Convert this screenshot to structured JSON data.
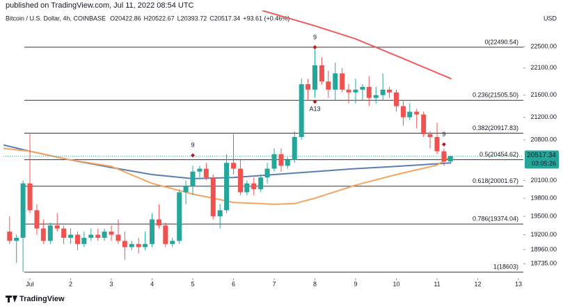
{
  "header": {
    "published": "published on TradingView.com, Jul 11, 2022 08:54 UTC",
    "symbol": "Bitcoin / U.S. Dollar, 4h, COINBASE",
    "ohlc": [
      "O20422.86",
      "H20522.67",
      "L20393.72",
      "C20517.34"
    ],
    "change": "+93.61 (+0.46%)"
  },
  "footer": {
    "logo": "TradingView"
  },
  "chart_data": {
    "type": "candlestick",
    "currency": "USD",
    "log_scale": true,
    "up_color": "#26a69a",
    "down_color": "#ef5350",
    "xlim": [
      0.35,
      13.12
    ],
    "xticks": [
      {
        "value": 1,
        "label": "Jul"
      },
      2,
      3,
      4,
      5,
      6,
      7,
      8,
      9,
      10,
      11,
      12,
      13
    ],
    "ylim": [
      18400,
      23200
    ],
    "yticks": [
      {
        "value": 22500,
        "label": "22500.00"
      },
      {
        "value": 22100,
        "label": "22100.00"
      },
      {
        "value": 21600,
        "label": "21600.00"
      },
      {
        "value": 21200,
        "label": "21200.00"
      },
      {
        "value": 20800,
        "label": "20800.00"
      },
      {
        "value": 20100,
        "label": "20100.00"
      },
      {
        "value": 19800,
        "label": "19800.00"
      },
      {
        "value": 19500,
        "label": "19500.00"
      },
      {
        "value": 19200,
        "label": "19200.00"
      },
      {
        "value": 18960,
        "label": "18960.00"
      },
      {
        "value": 18735,
        "label": "18735.00"
      }
    ],
    "x": [
      0.5,
      0.67,
      0.83,
      1,
      1.17,
      1.33,
      1.5,
      1.67,
      1.83,
      2,
      2.17,
      2.33,
      2.5,
      2.67,
      2.83,
      3,
      3.17,
      3.33,
      3.5,
      3.67,
      3.83,
      4,
      4.17,
      4.33,
      4.5,
      4.67,
      4.83,
      5,
      5.17,
      5.33,
      5.5,
      5.67,
      5.83,
      6,
      6.17,
      6.33,
      6.5,
      6.67,
      6.83,
      7,
      7.17,
      7.33,
      7.5,
      7.67,
      7.83,
      8,
      8.17,
      8.33,
      8.5,
      8.67,
      8.83,
      9,
      9.17,
      9.33,
      9.5,
      9.67,
      9.83,
      10,
      10.17,
      10.33,
      10.5,
      10.67,
      10.83,
      11,
      11.17,
      11.33
    ],
    "open": [
      19250,
      19100,
      19150,
      20050,
      19600,
      19300,
      19100,
      19350,
      19300,
      19150,
      19200,
      19050,
      19150,
      19200,
      19150,
      19250,
      19200,
      19100,
      19000,
      19050,
      19000,
      19050,
      19450,
      19350,
      19050,
      19100,
      19900,
      20000,
      20250,
      20300,
      20150,
      19500,
      19600,
      20400,
      20300,
      19900,
      20050,
      19950,
      20150,
      20300,
      20550,
      20350,
      20450,
      20850,
      21800,
      21700,
      22150,
      21850,
      21700,
      22000,
      21700,
      21650,
      21700,
      21750,
      21550,
      21600,
      21700,
      21650,
      21400,
      21200,
      21300,
      21250,
      20900,
      20850,
      20600,
      20422.86
    ],
    "high": [
      19500,
      19200,
      20100,
      20900,
      19700,
      19450,
      19400,
      19550,
      19350,
      19300,
      19250,
      19250,
      19300,
      19300,
      19300,
      19350,
      19450,
      19250,
      19100,
      19150,
      19250,
      19550,
      19700,
      19400,
      19150,
      19950,
      20100,
      20350,
      20350,
      20400,
      20200,
      19700,
      20550,
      20900,
      20450,
      20100,
      20150,
      20200,
      20400,
      20650,
      20650,
      20500,
      20950,
      21900,
      21900,
      22490.54,
      22300,
      22050,
      22200,
      22100,
      21800,
      21900,
      21800,
      21950,
      21750,
      22000,
      21750,
      21700,
      21500,
      21450,
      21350,
      21300,
      20950,
      21100,
      20650,
      20522.67
    ],
    "low": [
      19050,
      18750,
      18603,
      19550,
      19200,
      19050,
      19050,
      19250,
      19050,
      19050,
      18950,
      19000,
      19100,
      19100,
      19100,
      19100,
      19050,
      18800,
      18950,
      18900,
      18950,
      19000,
      19300,
      19000,
      19000,
      19050,
      19700,
      19850,
      20150,
      20100,
      19450,
      19300,
      19550,
      20200,
      19850,
      19850,
      19850,
      19900,
      20050,
      20250,
      20250,
      20300,
      20400,
      20800,
      21500,
      21550,
      21800,
      21550,
      21500,
      21650,
      21450,
      21450,
      21500,
      21400,
      21450,
      21500,
      21550,
      21300,
      21050,
      21150,
      21000,
      20850,
      20650,
      20550,
      20350,
      20393.72
    ],
    "close": [
      19100,
      19150,
      20050,
      19600,
      19300,
      19100,
      19350,
      19300,
      19150,
      19200,
      19050,
      19150,
      19200,
      19150,
      19250,
      19200,
      19100,
      19000,
      19050,
      19000,
      19050,
      19450,
      19350,
      19050,
      19100,
      19900,
      20000,
      20250,
      20300,
      20150,
      19500,
      19600,
      20400,
      20300,
      19900,
      20050,
      19950,
      20150,
      20300,
      20550,
      20350,
      20450,
      20850,
      21800,
      21700,
      22150,
      21850,
      21700,
      22000,
      21700,
      21650,
      21700,
      21750,
      21550,
      21600,
      21700,
      21650,
      21400,
      21200,
      21300,
      21250,
      20900,
      20850,
      20600,
      20422.86,
      20517.34
    ],
    "lines": [
      {
        "color": "#5b7db1",
        "x": [
          0.35,
          1,
          2,
          3,
          4,
          5,
          6,
          7,
          8,
          9,
          10,
          11.35
        ],
        "values": [
          20710,
          20600,
          20450,
          20320,
          20200,
          20130,
          20150,
          20200,
          20250,
          20300,
          20340,
          20400
        ]
      },
      {
        "color": "#f4a460",
        "x": [
          0.35,
          1,
          2,
          3,
          4,
          5,
          6,
          7,
          7.5,
          8,
          9,
          10,
          11,
          11.35
        ],
        "values": [
          20650,
          20600,
          20450,
          20340,
          20050,
          19870,
          19730,
          19700,
          19710,
          19800,
          20020,
          20200,
          20360,
          20520
        ]
      },
      {
        "color": "#f05a5a",
        "x": [
          6.7,
          8,
          9,
          10,
          11.35
        ],
        "values": [
          23200,
          22900,
          22650,
          22330,
          21900
        ]
      }
    ],
    "fib_levels": [
      {
        "label": "0(22490.54)",
        "value": 22490.54
      },
      {
        "label": "0.236(21505.50)",
        "value": 21505.5
      },
      {
        "label": "0.382(20917.83)",
        "value": 20917.83
      },
      {
        "label": "0.5(20454.62)",
        "value": 20454.62
      },
      {
        "label": "0.618(20001.67)",
        "value": 20001.67
      },
      {
        "label": "0.786(19374.04)",
        "value": 19374.04
      },
      {
        "label": "1(18603)",
        "value": 18603
      }
    ],
    "annotations": [
      {
        "x": 8,
        "price": 22490.54,
        "label": "9",
        "color": "#26a69a",
        "placement": "above"
      },
      {
        "x": 8,
        "price": 21480,
        "label": "A13",
        "color": "#2a7fb8",
        "placement": "below"
      },
      {
        "x": 5,
        "price": 20530,
        "label": "9",
        "color": "#26a69a",
        "placement": "above"
      },
      {
        "x": 11.17,
        "price": 20720,
        "label": "9",
        "color": "#ef5350",
        "placement": "above"
      }
    ],
    "last_price_timer": "03:05:26"
  }
}
